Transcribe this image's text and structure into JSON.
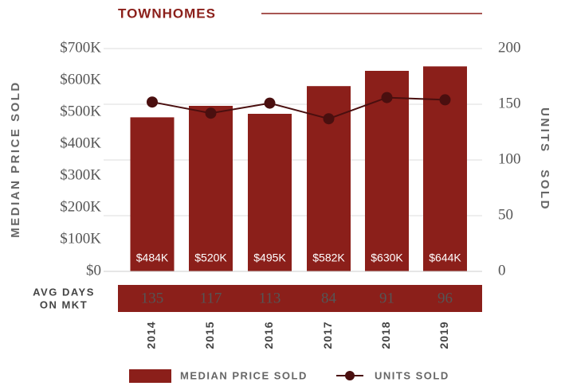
{
  "chart_data": {
    "type": "bar",
    "title": "TOWNHOMES",
    "ylabel": "MEDIAN PRICE SOLD",
    "y2label": "UNITS SOLD",
    "categories": [
      "2014",
      "2015",
      "2016",
      "2017",
      "2018",
      "2019"
    ],
    "series": [
      {
        "name": "MEDIAN PRICE SOLD",
        "type": "bar",
        "color": "#8b1f1a",
        "values": [
          484,
          520,
          495,
          582,
          630,
          644
        ],
        "value_labels": [
          "$484K",
          "$520K",
          "$495K",
          "$582K",
          "$630K",
          "$644K"
        ]
      },
      {
        "name": "UNITS SOLD",
        "type": "line",
        "axis": "y2",
        "color": "#4a0f0f",
        "values": [
          152,
          142,
          151,
          137,
          156,
          154
        ]
      }
    ],
    "ylim": [
      0,
      700
    ],
    "yticks": [
      {
        "value": 0,
        "label": "$0"
      },
      {
        "value": 100,
        "label": "$100K"
      },
      {
        "value": 200,
        "label": "$200K"
      },
      {
        "value": 300,
        "label": "$300K"
      },
      {
        "value": 400,
        "label": "$400K"
      },
      {
        "value": 500,
        "label": "$500K"
      },
      {
        "value": 600,
        "label": "$600K"
      },
      {
        "value": 700,
        "label": "$700K"
      }
    ],
    "y2lim": [
      0,
      200
    ],
    "y2ticks": [
      0,
      50,
      100,
      150,
      200
    ],
    "grid": true,
    "avg_days": {
      "label": [
        "AVG DAYS",
        "ON MKT"
      ],
      "values": [
        135,
        117,
        113,
        84,
        91,
        96
      ]
    }
  }
}
